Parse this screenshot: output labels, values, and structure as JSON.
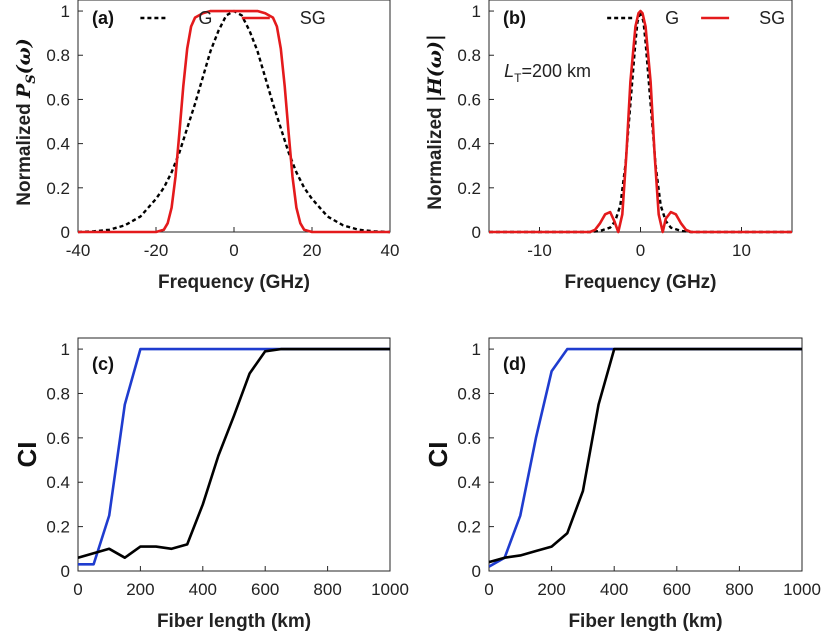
{
  "chart_data": [
    {
      "panel": "(a)",
      "type": "line",
      "xlabel": "Frequency (GHz)",
      "ylabel_text": "Normalized",
      "ylabel_symbol": "P",
      "ylabel_symbol_sub": "S",
      "ylabel_symbol_arg": "(ω)",
      "xlim": [
        -40,
        40
      ],
      "ylim": [
        0,
        1.05
      ],
      "xticks": [
        -40,
        -20,
        0,
        20,
        40
      ],
      "yticks": [
        0,
        0.2,
        0.4,
        0.6,
        0.8,
        1
      ],
      "ytick_labels": [
        "0",
        "0.2",
        "0.4",
        "0.6",
        "0.8",
        "1"
      ],
      "legend": [
        {
          "name": "G",
          "color": "#000000",
          "style": "dashed"
        },
        {
          "name": "SG",
          "color": "#e41a1c",
          "style": "solid"
        }
      ],
      "series": [
        {
          "name": "G",
          "color": "#000000",
          "style": "dashed",
          "x": [
            -40,
            -36,
            -32,
            -28,
            -24,
            -20,
            -18,
            -16,
            -14,
            -12,
            -10,
            -8,
            -6,
            -4,
            -2,
            0,
            2,
            4,
            6,
            8,
            10,
            12,
            14,
            16,
            18,
            20,
            24,
            28,
            32,
            36,
            40
          ],
          "y": [
            0,
            0.003,
            0.01,
            0.03,
            0.07,
            0.15,
            0.2,
            0.27,
            0.36,
            0.47,
            0.58,
            0.7,
            0.82,
            0.91,
            0.98,
            1.0,
            0.98,
            0.91,
            0.82,
            0.7,
            0.58,
            0.47,
            0.36,
            0.27,
            0.2,
            0.15,
            0.07,
            0.03,
            0.01,
            0.003,
            0
          ]
        },
        {
          "name": "SG",
          "color": "#e41a1c",
          "style": "solid",
          "x": [
            -40,
            -20,
            -18,
            -17,
            -16,
            -15,
            -14,
            -13,
            -12,
            -11,
            -10,
            -8,
            -6,
            -4,
            -2,
            0,
            2,
            4,
            6,
            8,
            10,
            11,
            12,
            13,
            14,
            15,
            16,
            17,
            18,
            20,
            40
          ],
          "y": [
            0,
            0,
            0.01,
            0.04,
            0.11,
            0.25,
            0.45,
            0.66,
            0.83,
            0.93,
            0.97,
            0.99,
            1.0,
            1.0,
            1.0,
            1.0,
            1.0,
            1.0,
            1.0,
            0.99,
            0.97,
            0.93,
            0.83,
            0.66,
            0.45,
            0.25,
            0.11,
            0.04,
            0.01,
            0,
            0
          ]
        }
      ]
    },
    {
      "panel": "(b)",
      "type": "line",
      "xlabel": "Frequency (GHz)",
      "ylabel_text": "Normalized",
      "ylabel_symbol": "H",
      "ylabel_symbol_arg": "(ω)",
      "annotation": {
        "L": "L",
        "sub": "T",
        "rest": "=200 km"
      },
      "xlim": [
        -15,
        15
      ],
      "ylim": [
        0,
        1.05
      ],
      "xticks": [
        -10,
        0,
        10
      ],
      "yticks": [
        0,
        0.2,
        0.4,
        0.6,
        0.8,
        1
      ],
      "ytick_labels": [
        "0",
        "0.2",
        "0.4",
        "0.6",
        "0.8",
        "1"
      ],
      "legend": [
        {
          "name": "G",
          "color": "#000000",
          "style": "dashed"
        },
        {
          "name": "SG",
          "color": "#e41a1c",
          "style": "solid"
        }
      ],
      "series": [
        {
          "name": "G",
          "color": "#000000",
          "style": "dashed",
          "x": [
            -15,
            -5,
            -4,
            -3,
            -2.5,
            -2,
            -1.5,
            -1,
            -0.5,
            -0.3,
            0,
            0.3,
            0.5,
            1,
            1.5,
            2,
            2.5,
            3,
            4,
            5,
            15
          ],
          "y": [
            0,
            0,
            0.005,
            0.02,
            0.05,
            0.12,
            0.3,
            0.58,
            0.86,
            0.95,
            1.0,
            0.95,
            0.86,
            0.58,
            0.3,
            0.12,
            0.05,
            0.02,
            0.005,
            0,
            0
          ]
        },
        {
          "name": "SG",
          "color": "#e41a1c",
          "style": "solid",
          "x": [
            -15,
            -5,
            -4.5,
            -4,
            -3.5,
            -3,
            -2.6,
            -2.2,
            -1.8,
            -1.4,
            -1,
            -0.5,
            -0.2,
            0,
            0.2,
            0.5,
            1,
            1.4,
            1.8,
            2.2,
            2.5,
            3,
            3.5,
            4,
            4.5,
            5,
            15
          ],
          "y": [
            0,
            0,
            0.01,
            0.04,
            0.08,
            0.09,
            0.05,
            0.0,
            0.08,
            0.35,
            0.68,
            0.93,
            0.99,
            1.0,
            0.99,
            0.93,
            0.68,
            0.35,
            0.08,
            0.0,
            0.06,
            0.09,
            0.08,
            0.04,
            0.01,
            0,
            0
          ]
        }
      ]
    },
    {
      "panel": "(c)",
      "type": "line",
      "xlabel": "Fiber length (km)",
      "ylabel": "CI",
      "xlim": [
        0,
        1000
      ],
      "ylim": [
        0,
        1.05
      ],
      "xticks": [
        0,
        200,
        400,
        600,
        800,
        1000
      ],
      "yticks": [
        0,
        0.2,
        0.4,
        0.6,
        0.8,
        1
      ],
      "ytick_labels": [
        "0",
        "0.2",
        "0.4",
        "0.6",
        "0.8",
        "1"
      ],
      "series": [
        {
          "color": "#1f3ccf",
          "x": [
            0,
            50,
            100,
            150,
            200,
            250,
            300,
            400,
            600,
            800,
            1000
          ],
          "y": [
            0.03,
            0.03,
            0.25,
            0.75,
            1.0,
            1.0,
            1.0,
            1.0,
            1.0,
            1.0,
            1.0
          ]
        },
        {
          "color": "#000000",
          "x": [
            0,
            50,
            100,
            150,
            200,
            250,
            300,
            350,
            400,
            450,
            500,
            550,
            600,
            650,
            700,
            800,
            900,
            1000
          ],
          "y": [
            0.06,
            0.08,
            0.1,
            0.06,
            0.11,
            0.11,
            0.1,
            0.12,
            0.3,
            0.52,
            0.7,
            0.89,
            0.99,
            1.0,
            1.0,
            1.0,
            1.0,
            1.0
          ]
        }
      ]
    },
    {
      "panel": "(d)",
      "type": "line",
      "xlabel": "Fiber length (km)",
      "ylabel": "CI",
      "xlim": [
        0,
        1000
      ],
      "ylim": [
        0,
        1.05
      ],
      "xticks": [
        0,
        200,
        400,
        600,
        800,
        1000
      ],
      "yticks": [
        0,
        0.2,
        0.4,
        0.6,
        0.8,
        1
      ],
      "ytick_labels": [
        "0",
        "0.2",
        "0.4",
        "0.6",
        "0.8",
        "1"
      ],
      "series": [
        {
          "color": "#1f3ccf",
          "x": [
            0,
            50,
            100,
            150,
            200,
            250,
            300,
            400,
            600,
            800,
            1000
          ],
          "y": [
            0.02,
            0.06,
            0.25,
            0.6,
            0.9,
            1.0,
            1.0,
            1.0,
            1.0,
            1.0,
            1.0
          ]
        },
        {
          "color": "#000000",
          "x": [
            0,
            50,
            100,
            150,
            200,
            250,
            300,
            350,
            400,
            450,
            500,
            600,
            800,
            1000
          ],
          "y": [
            0.04,
            0.06,
            0.07,
            0.09,
            0.11,
            0.17,
            0.36,
            0.75,
            1.0,
            1.0,
            1.0,
            1.0,
            1.0,
            1.0
          ]
        }
      ]
    }
  ]
}
